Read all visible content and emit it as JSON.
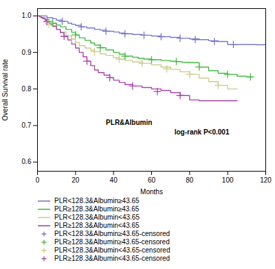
{
  "chart_data": {
    "type": "line",
    "xlabel": "Months",
    "ylabel": "Overall Survival rate",
    "xlim": [
      0,
      120
    ],
    "ylim": [
      0.575,
      1.02
    ],
    "xticks": [
      0,
      20,
      40,
      60,
      80,
      100,
      120
    ],
    "yticks": [
      0.6,
      0.7,
      0.8,
      0.9,
      {
        "value": 1.0,
        "label": "1.0"
      }
    ],
    "grid": false,
    "legend": "bottom",
    "annotations": [
      "PLR&Albumin",
      "log-rank P<0.001"
    ],
    "series": [
      {
        "name": "PLR<128.3&Albumin≥43.65",
        "color": "#7777CC",
        "type": "step",
        "x": [
          0,
          2,
          5,
          8,
          10,
          13,
          16,
          18,
          20,
          23,
          26,
          30,
          33,
          36,
          40,
          43,
          46,
          50,
          55,
          60,
          65,
          70,
          75,
          80,
          85,
          90,
          95,
          100,
          105,
          110,
          113,
          115,
          120
        ],
        "values": [
          1.0,
          1.0,
          0.995,
          0.992,
          0.988,
          0.985,
          0.98,
          0.977,
          0.974,
          0.97,
          0.967,
          0.963,
          0.961,
          0.958,
          0.956,
          0.953,
          0.951,
          0.949,
          0.947,
          0.945,
          0.943,
          0.941,
          0.939,
          0.937,
          0.935,
          0.932,
          0.93,
          0.922,
          0.922,
          0.922,
          0.922,
          0.921,
          0.921
        ]
      },
      {
        "name": "PLR≥128.3&Albumin≥43.65",
        "color": "#44BB44",
        "type": "step",
        "x": [
          0,
          2,
          4,
          6,
          8,
          10,
          12,
          15,
          18,
          20,
          22,
          25,
          28,
          30,
          33,
          36,
          40,
          43,
          46,
          50,
          53,
          56,
          60,
          65,
          70,
          73,
          76,
          80,
          85,
          90,
          95,
          100,
          105,
          110,
          113
        ],
        "values": [
          1.0,
          0.995,
          0.99,
          0.985,
          0.98,
          0.975,
          0.97,
          0.963,
          0.955,
          0.948,
          0.94,
          0.933,
          0.926,
          0.92,
          0.913,
          0.907,
          0.9,
          0.895,
          0.89,
          0.887,
          0.884,
          0.882,
          0.88,
          0.878,
          0.876,
          0.875,
          0.873,
          0.872,
          0.86,
          0.85,
          0.843,
          0.84,
          0.835,
          0.833,
          0.833
        ]
      },
      {
        "name": "PLR<128.3&Albumin<43.65",
        "color": "#CCCC88",
        "type": "step",
        "x": [
          0,
          2,
          4,
          6,
          8,
          10,
          12,
          15,
          18,
          20,
          22,
          25,
          28,
          30,
          33,
          36,
          40,
          43,
          46,
          50,
          55,
          60,
          65,
          70,
          75,
          80,
          85,
          90,
          95,
          100,
          105
        ],
        "values": [
          1.0,
          0.993,
          0.985,
          0.978,
          0.97,
          0.963,
          0.956,
          0.946,
          0.936,
          0.927,
          0.918,
          0.912,
          0.906,
          0.902,
          0.896,
          0.892,
          0.886,
          0.882,
          0.878,
          0.874,
          0.87,
          0.866,
          0.86,
          0.854,
          0.847,
          0.84,
          0.83,
          0.82,
          0.81,
          0.8,
          0.8
        ]
      },
      {
        "name": "PLR≥128.3&Albumin<43.65",
        "color": "#AA44AA",
        "type": "step",
        "x": [
          0,
          1,
          2,
          3,
          4,
          5,
          6,
          7,
          8,
          10,
          12,
          14,
          16,
          18,
          20,
          22,
          24,
          26,
          28,
          30,
          32,
          35,
          38,
          40,
          43,
          46,
          50,
          55,
          60,
          65,
          70,
          75,
          80,
          85,
          90,
          95,
          100,
          105
        ],
        "values": [
          1.0,
          0.998,
          0.995,
          0.992,
          0.988,
          0.984,
          0.98,
          0.976,
          0.972,
          0.963,
          0.954,
          0.944,
          0.934,
          0.923,
          0.912,
          0.9,
          0.888,
          0.876,
          0.864,
          0.852,
          0.845,
          0.838,
          0.831,
          0.824,
          0.818,
          0.812,
          0.808,
          0.804,
          0.8,
          0.796,
          0.79,
          0.782,
          0.77,
          0.768,
          0.768,
          0.768,
          0.768,
          0.768
        ]
      },
      {
        "name": "PLR<128.3&Albumin≥43.65-censored",
        "color": "#7777CC",
        "type": "scatter",
        "marker": "+",
        "x": [
          13,
          23,
          36,
          46,
          56,
          65,
          75,
          83,
          93,
          103
        ],
        "values": [
          0.985,
          0.97,
          0.958,
          0.951,
          0.947,
          0.943,
          0.939,
          0.935,
          0.93,
          0.922
        ]
      },
      {
        "name": "PLR≥128.3&Albumin≥43.65-censored",
        "color": "#44BB44",
        "type": "scatter",
        "marker": "+",
        "x": [
          8,
          20,
          33,
          46,
          60,
          73,
          85,
          100,
          112
        ],
        "values": [
          0.98,
          0.948,
          0.913,
          0.89,
          0.88,
          0.875,
          0.86,
          0.84,
          0.833
        ]
      },
      {
        "name": "PLR<128.3&Albumin<43.65-censored",
        "color": "#CCCC88",
        "type": "scatter",
        "marker": "+",
        "x": [
          6,
          18,
          30,
          43,
          55,
          68,
          80,
          95
        ],
        "values": [
          0.978,
          0.936,
          0.902,
          0.882,
          0.87,
          0.855,
          0.84,
          0.81
        ]
      },
      {
        "name": "PLR≥128.3&Albumin<43.65-censored",
        "color": "#AA44AA",
        "type": "scatter",
        "marker": "+",
        "x": [
          5,
          14,
          26,
          38,
          50,
          63,
          75
        ],
        "values": [
          0.984,
          0.944,
          0.876,
          0.831,
          0.808,
          0.793,
          0.782
        ]
      }
    ]
  }
}
